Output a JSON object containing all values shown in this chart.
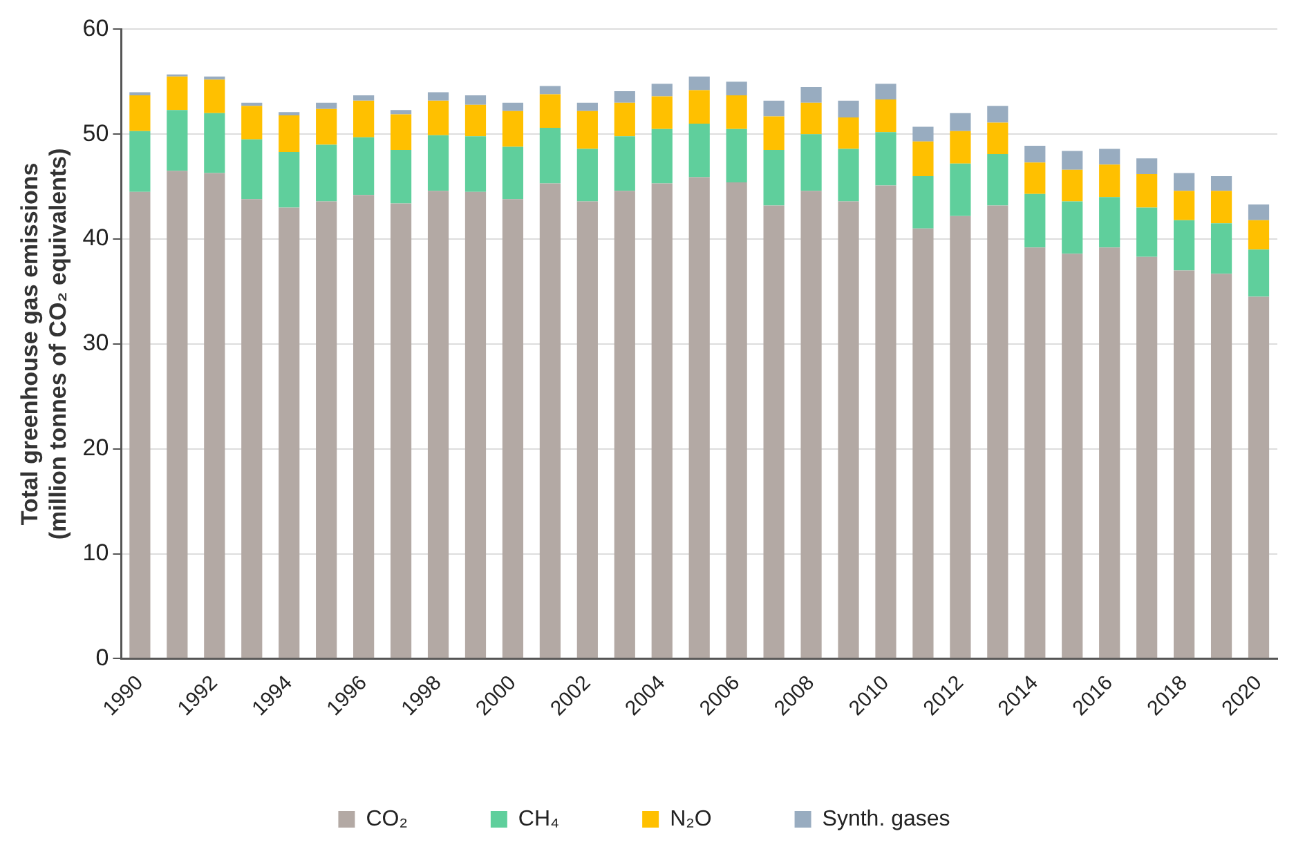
{
  "chart_data": {
    "type": "bar",
    "stacked": true,
    "ylabel": "Total greenhouse gas emissions\n(million tonnes of CO₂ equivalents)",
    "categories": [
      "1990",
      null,
      "1992",
      null,
      "1994",
      null,
      "1996",
      null,
      "1998",
      null,
      "2000",
      null,
      "2002",
      null,
      "2004",
      null,
      "2006",
      null,
      "2008",
      null,
      "2010",
      null,
      "2012",
      null,
      "2014",
      null,
      "2016",
      null,
      "2018",
      null,
      "2020"
    ],
    "series": [
      {
        "name": "CO₂",
        "color": "#b3a9a4",
        "values": [
          44.5,
          46.5,
          46.3,
          43.8,
          43.0,
          43.6,
          44.2,
          43.4,
          44.6,
          44.5,
          43.8,
          45.3,
          43.6,
          44.6,
          45.3,
          45.9,
          45.4,
          43.2,
          44.6,
          43.6,
          45.1,
          41.0,
          42.2,
          43.2,
          39.2,
          38.6,
          39.2,
          38.3,
          37.0,
          36.7,
          34.5
        ]
      },
      {
        "name": "CH₄",
        "color": "#5fcf9c",
        "values": [
          5.8,
          5.8,
          5.7,
          5.7,
          5.3,
          5.4,
          5.5,
          5.1,
          5.3,
          5.3,
          5.0,
          5.3,
          5.0,
          5.2,
          5.2,
          5.1,
          5.1,
          5.3,
          5.4,
          5.0,
          5.1,
          5.0,
          5.0,
          4.9,
          5.1,
          5.0,
          4.8,
          4.7,
          4.8,
          4.8,
          4.5
        ]
      },
      {
        "name": "N₂O",
        "color": "#ffc000",
        "values": [
          3.4,
          3.2,
          3.2,
          3.2,
          3.5,
          3.4,
          3.5,
          3.4,
          3.3,
          3.0,
          3.4,
          3.2,
          3.6,
          3.2,
          3.1,
          3.2,
          3.2,
          3.2,
          3.0,
          3.0,
          3.1,
          3.3,
          3.1,
          3.0,
          3.0,
          3.0,
          3.1,
          3.2,
          2.8,
          3.1,
          2.8
        ]
      },
      {
        "name": "Synth. gases",
        "color": "#98acc0",
        "values": [
          0.3,
          0.2,
          0.3,
          0.3,
          0.3,
          0.6,
          0.5,
          0.4,
          0.8,
          0.9,
          0.8,
          0.8,
          0.8,
          1.1,
          1.2,
          1.3,
          1.3,
          1.5,
          1.5,
          1.6,
          1.5,
          1.4,
          1.7,
          1.6,
          1.6,
          1.8,
          1.5,
          1.5,
          1.7,
          1.4,
          1.5
        ]
      }
    ],
    "ylim": [
      0,
      60
    ],
    "yticks": [
      0,
      10,
      20,
      30,
      40,
      50,
      60
    ],
    "grid": "y",
    "legend": "bottom"
  }
}
